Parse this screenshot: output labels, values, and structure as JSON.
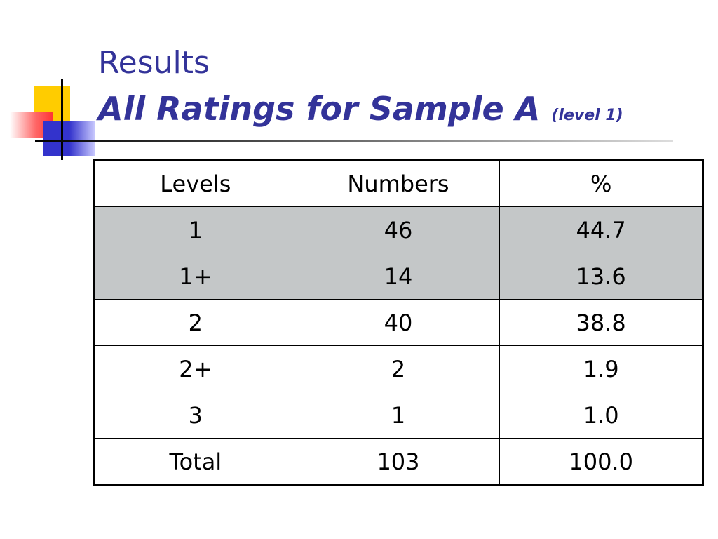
{
  "header": {
    "title": "Results",
    "subtitle": "All Ratings for Sample A",
    "note": "(level 1)"
  },
  "table": {
    "columns": [
      "Levels",
      "Numbers",
      "%"
    ],
    "rows": [
      [
        "1",
        "46",
        "44.7"
      ],
      [
        "1+",
        "14",
        "13.6"
      ],
      [
        "2",
        "40",
        "38.8"
      ],
      [
        "2+",
        "2",
        "1.9"
      ],
      [
        "3",
        "1",
        "1.0"
      ],
      [
        "Total",
        "103",
        "100.0"
      ]
    ]
  }
}
